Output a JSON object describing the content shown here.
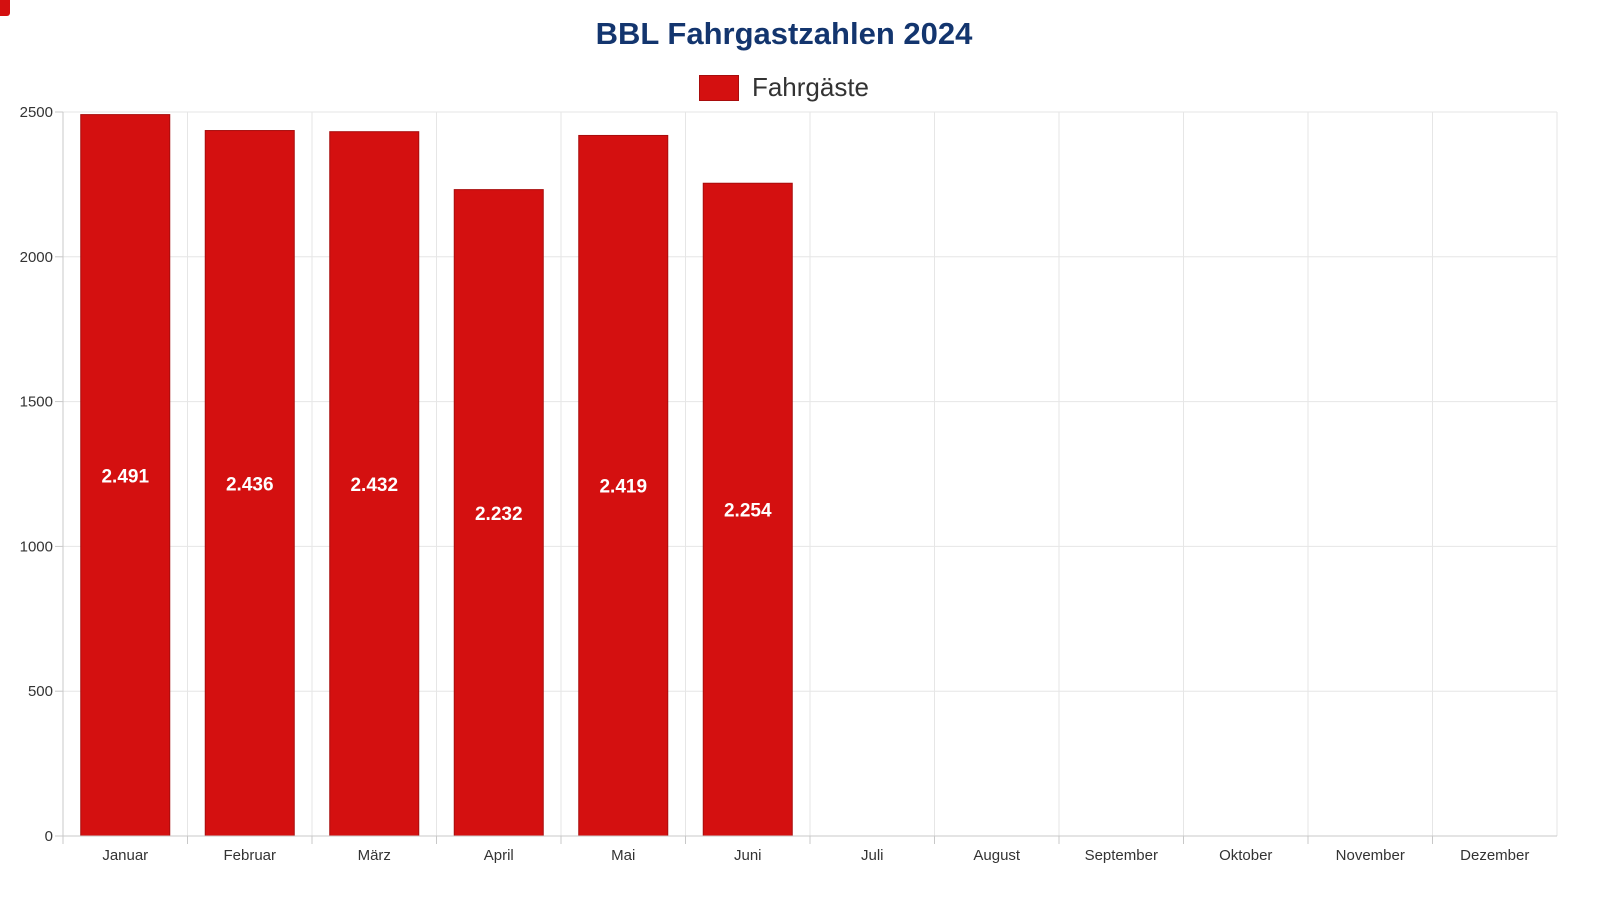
{
  "chart_data": {
    "type": "bar",
    "title": "BBL Fahrgastzahlen 2024",
    "categories": [
      "Januar",
      "Februar",
      "März",
      "April",
      "Mai",
      "Juni",
      "Juli",
      "August",
      "September",
      "Oktober",
      "November",
      "Dezember"
    ],
    "series": [
      {
        "name": "Fahrgäste",
        "values": [
          2491,
          2436,
          2432,
          2232,
          2419,
          2254,
          null,
          null,
          null,
          null,
          null,
          null
        ],
        "labels": [
          "2.491",
          "2.436",
          "2.432",
          "2.232",
          "2.419",
          "2.254",
          null,
          null,
          null,
          null,
          null,
          null
        ]
      }
    ],
    "ylim": [
      0,
      2500
    ],
    "yticks": [
      0,
      500,
      1000,
      1500,
      2000,
      2500
    ],
    "xlabel": "",
    "ylabel": "",
    "grid": true,
    "legend_position": "top-center"
  },
  "colors": {
    "bar": "#d41010",
    "bar_border": "#a80c0c",
    "title": "#13356e",
    "grid": "#e6e6e6",
    "axis": "#c8c8c8"
  }
}
